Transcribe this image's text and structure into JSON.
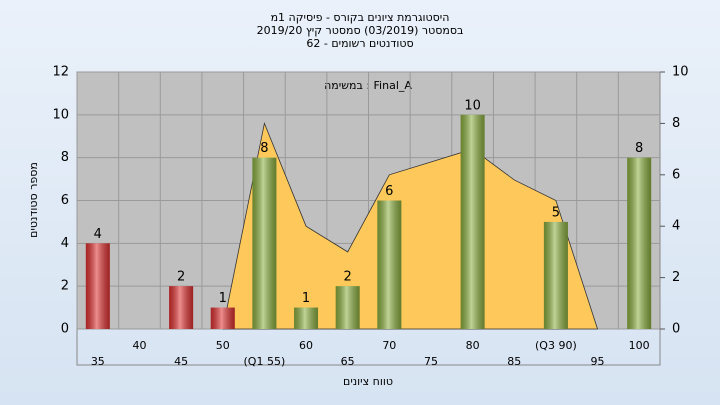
{
  "chart_data": {
    "type": "bar",
    "title": [
      "היסטוגרמת ציונים בקורס - פיסיקה 1מ",
      "בסמסטר (03/2019) סמסטר קיץ 2019/20",
      "סטודנטים רשומים - 62"
    ],
    "annotation": "במשימה : Final_A",
    "x_label": "טווח ציונים",
    "y_label": "מספר סטודנטים",
    "categories": [
      "35",
      "40",
      "45",
      "50",
      "(Q1 55)",
      "60",
      "65",
      "70",
      "75",
      "80",
      "85",
      "(Q3 90)",
      "95",
      "100"
    ],
    "series": [
      {
        "values": [
          4,
          null,
          2,
          1,
          8,
          1,
          2,
          6,
          null,
          10,
          null,
          5,
          null,
          8
        ],
        "colors": [
          "#e03030",
          null,
          "#e03030",
          "#e03030",
          "#8cb040",
          "#8cb040",
          "#8cb040",
          "#8cb040",
          null,
          "#8cb040",
          null,
          "#8cb040",
          null,
          "#8cb040"
        ]
      },
      {
        "type": "area",
        "axis": "y2",
        "color": "#ffc85a",
        "values": [
          null,
          null,
          null,
          0,
          8,
          4,
          3,
          6,
          6.5,
          7,
          5.8,
          5,
          0,
          null
        ]
      }
    ],
    "ylim": [
      0,
      12
    ],
    "yticks": [
      0,
      2,
      4,
      6,
      8,
      10,
      12
    ],
    "y2lim": [
      0,
      10
    ],
    "y2ticks": [
      0,
      2,
      4,
      6,
      8,
      10
    ],
    "grid": true
  }
}
